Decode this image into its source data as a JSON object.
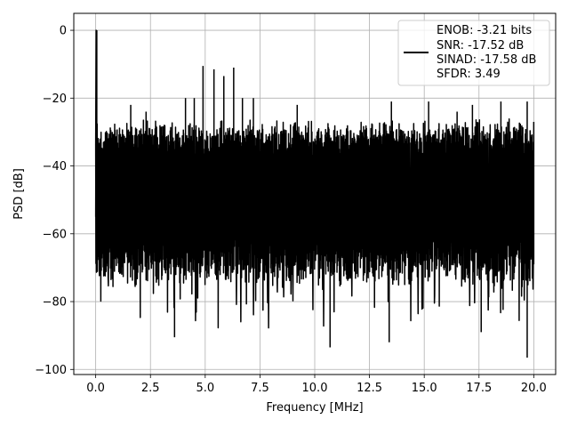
{
  "chart_data": {
    "type": "line",
    "title": "",
    "xlabel": "Frequency [MHz]",
    "ylabel": "PSD [dB]",
    "xlim": [
      -1.0,
      21.0
    ],
    "ylim": [
      -101.5,
      5.0
    ],
    "x_ticks": [
      0.0,
      2.5,
      5.0,
      7.5,
      10.0,
      12.5,
      15.0,
      17.5,
      20.0
    ],
    "x_tick_labels": [
      "0.0",
      "2.5",
      "5.0",
      "7.5",
      "10.0",
      "12.5",
      "15.0",
      "17.5",
      "20.0"
    ],
    "y_ticks": [
      0,
      -20,
      -40,
      -60,
      -80,
      -100
    ],
    "y_tick_labels": [
      "0",
      "−20",
      "−40",
      "−60",
      "−80",
      "−100"
    ],
    "grid": true,
    "legend_position": "top-right",
    "line_color": "#000000",
    "series": [
      {
        "name": "ENOB: -3.21 bits\nSNR: -17.52 dB\nSINAD: -17.58 dB\nSFDR: 3.49",
        "legend_lines": [
          "ENOB: -3.21 bits",
          "SNR: -17.52 dB",
          "SINAD: -17.58 dB",
          "SFDR: 3.49"
        ],
        "x_range": [
          0.0,
          20.0
        ],
        "dc_peak": 0.0,
        "noise_band_top": -29,
        "noise_band_bottom": -66,
        "min_value": -96.5,
        "spikes": [
          {
            "x": 0.05,
            "y": 0.0
          },
          {
            "x": 1.6,
            "y": -22
          },
          {
            "x": 2.3,
            "y": -24
          },
          {
            "x": 4.1,
            "y": -20
          },
          {
            "x": 4.5,
            "y": -20
          },
          {
            "x": 4.9,
            "y": -10.5
          },
          {
            "x": 5.4,
            "y": -11.5
          },
          {
            "x": 5.85,
            "y": -13.5
          },
          {
            "x": 6.3,
            "y": -11
          },
          {
            "x": 6.7,
            "y": -20
          },
          {
            "x": 7.2,
            "y": -20
          },
          {
            "x": 9.2,
            "y": -22
          },
          {
            "x": 13.5,
            "y": -21
          },
          {
            "x": 15.2,
            "y": -21
          },
          {
            "x": 16.5,
            "y": -24
          },
          {
            "x": 17.2,
            "y": -22
          },
          {
            "x": 18.5,
            "y": -21
          },
          {
            "x": 19.7,
            "y": -21
          },
          {
            "x": 3.6,
            "y": -90.5
          },
          {
            "x": 10.7,
            "y": -93.5
          },
          {
            "x": 13.4,
            "y": -92
          },
          {
            "x": 17.6,
            "y": -89
          },
          {
            "x": 19.7,
            "y": -96.5
          }
        ]
      }
    ]
  }
}
